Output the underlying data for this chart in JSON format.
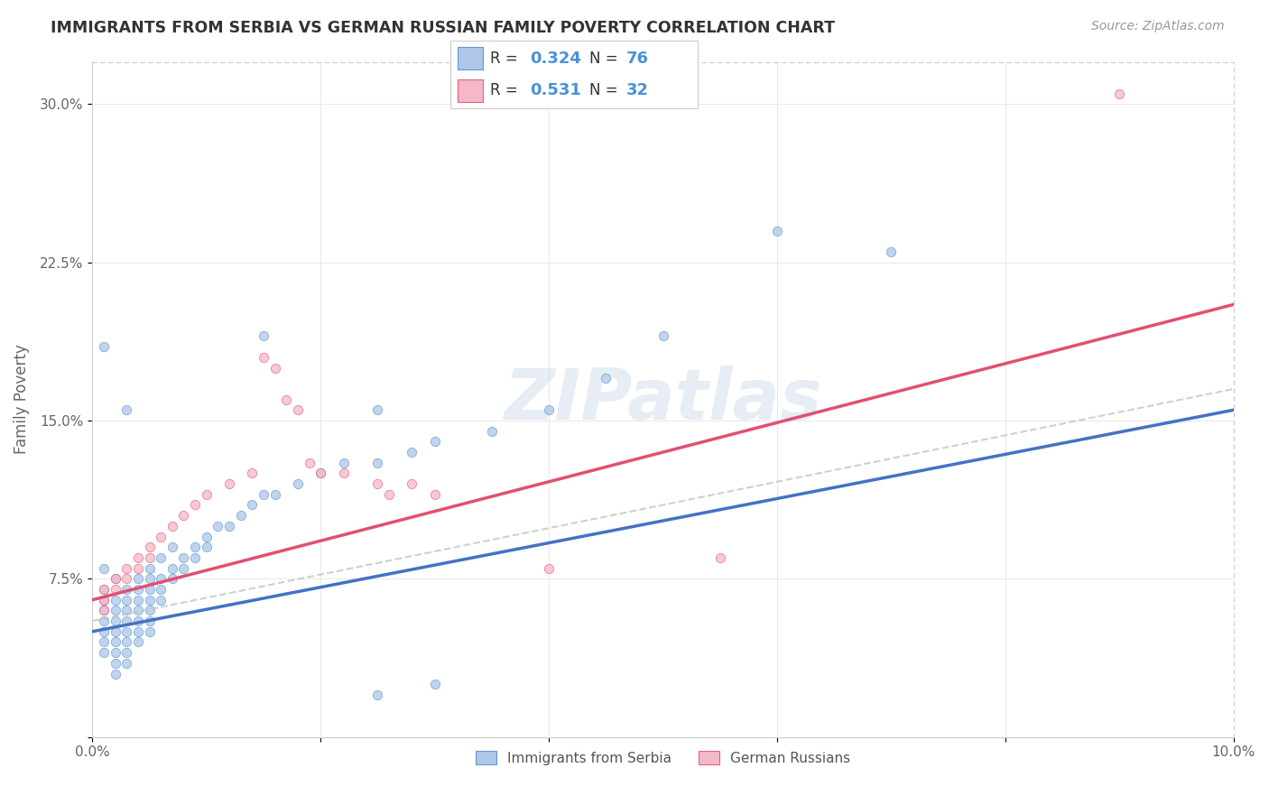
{
  "title": "IMMIGRANTS FROM SERBIA VS GERMAN RUSSIAN FAMILY POVERTY CORRELATION CHART",
  "source": "Source: ZipAtlas.com",
  "ylabel": "Family Poverty",
  "xlim": [
    0.0,
    0.1
  ],
  "ylim": [
    0.0,
    0.32
  ],
  "xtick_positions": [
    0.0,
    0.02,
    0.04,
    0.06,
    0.08,
    0.1
  ],
  "xticklabels": [
    "0.0%",
    "",
    "",
    "",
    "",
    "10.0%"
  ],
  "ytick_positions": [
    0.0,
    0.075,
    0.15,
    0.225,
    0.3
  ],
  "yticklabels": [
    "",
    "7.5%",
    "15.0%",
    "22.5%",
    "30.0%"
  ],
  "serbia_fill_color": "#aec6e8",
  "serbia_edge_color": "#5b9bd5",
  "gr_fill_color": "#f4b8c8",
  "gr_edge_color": "#e8607a",
  "serbia_line_color": "#4472c4",
  "gr_line_color": "#e05070",
  "dash_line_color": "#b8ccb8",
  "legend_color": "#4a90d9",
  "watermark_text": "ZIPatlas",
  "serbia_scatter": [
    [
      0.001,
      0.065
    ],
    [
      0.001,
      0.07
    ],
    [
      0.001,
      0.08
    ],
    [
      0.001,
      0.055
    ],
    [
      0.001,
      0.06
    ],
    [
      0.001,
      0.05
    ],
    [
      0.001,
      0.045
    ],
    [
      0.001,
      0.04
    ],
    [
      0.002,
      0.075
    ],
    [
      0.002,
      0.065
    ],
    [
      0.002,
      0.06
    ],
    [
      0.002,
      0.055
    ],
    [
      0.002,
      0.05
    ],
    [
      0.002,
      0.045
    ],
    [
      0.002,
      0.04
    ],
    [
      0.002,
      0.035
    ],
    [
      0.002,
      0.03
    ],
    [
      0.003,
      0.07
    ],
    [
      0.003,
      0.065
    ],
    [
      0.003,
      0.06
    ],
    [
      0.003,
      0.055
    ],
    [
      0.003,
      0.05
    ],
    [
      0.003,
      0.045
    ],
    [
      0.003,
      0.04
    ],
    [
      0.003,
      0.035
    ],
    [
      0.004,
      0.075
    ],
    [
      0.004,
      0.07
    ],
    [
      0.004,
      0.065
    ],
    [
      0.004,
      0.06
    ],
    [
      0.004,
      0.055
    ],
    [
      0.004,
      0.05
    ],
    [
      0.004,
      0.045
    ],
    [
      0.005,
      0.08
    ],
    [
      0.005,
      0.075
    ],
    [
      0.005,
      0.07
    ],
    [
      0.005,
      0.065
    ],
    [
      0.005,
      0.06
    ],
    [
      0.005,
      0.055
    ],
    [
      0.005,
      0.05
    ],
    [
      0.006,
      0.085
    ],
    [
      0.006,
      0.075
    ],
    [
      0.006,
      0.07
    ],
    [
      0.006,
      0.065
    ],
    [
      0.007,
      0.09
    ],
    [
      0.007,
      0.08
    ],
    [
      0.007,
      0.075
    ],
    [
      0.008,
      0.085
    ],
    [
      0.008,
      0.08
    ],
    [
      0.009,
      0.09
    ],
    [
      0.009,
      0.085
    ],
    [
      0.01,
      0.095
    ],
    [
      0.01,
      0.09
    ],
    [
      0.011,
      0.1
    ],
    [
      0.012,
      0.1
    ],
    [
      0.013,
      0.105
    ],
    [
      0.014,
      0.11
    ],
    [
      0.015,
      0.115
    ],
    [
      0.016,
      0.115
    ],
    [
      0.018,
      0.12
    ],
    [
      0.02,
      0.125
    ],
    [
      0.022,
      0.13
    ],
    [
      0.025,
      0.13
    ],
    [
      0.028,
      0.135
    ],
    [
      0.03,
      0.14
    ],
    [
      0.035,
      0.145
    ],
    [
      0.04,
      0.155
    ],
    [
      0.045,
      0.17
    ],
    [
      0.05,
      0.19
    ],
    [
      0.001,
      0.185
    ],
    [
      0.015,
      0.19
    ],
    [
      0.025,
      0.155
    ],
    [
      0.003,
      0.155
    ],
    [
      0.06,
      0.24
    ],
    [
      0.07,
      0.23
    ],
    [
      0.025,
      0.02
    ],
    [
      0.03,
      0.025
    ]
  ],
  "gr_scatter": [
    [
      0.001,
      0.07
    ],
    [
      0.001,
      0.065
    ],
    [
      0.001,
      0.06
    ],
    [
      0.002,
      0.075
    ],
    [
      0.002,
      0.07
    ],
    [
      0.003,
      0.08
    ],
    [
      0.003,
      0.075
    ],
    [
      0.004,
      0.085
    ],
    [
      0.004,
      0.08
    ],
    [
      0.005,
      0.09
    ],
    [
      0.005,
      0.085
    ],
    [
      0.006,
      0.095
    ],
    [
      0.007,
      0.1
    ],
    [
      0.008,
      0.105
    ],
    [
      0.009,
      0.11
    ],
    [
      0.01,
      0.115
    ],
    [
      0.012,
      0.12
    ],
    [
      0.014,
      0.125
    ],
    [
      0.015,
      0.18
    ],
    [
      0.016,
      0.175
    ],
    [
      0.017,
      0.16
    ],
    [
      0.018,
      0.155
    ],
    [
      0.019,
      0.13
    ],
    [
      0.02,
      0.125
    ],
    [
      0.022,
      0.125
    ],
    [
      0.025,
      0.12
    ],
    [
      0.026,
      0.115
    ],
    [
      0.028,
      0.12
    ],
    [
      0.03,
      0.115
    ],
    [
      0.04,
      0.08
    ],
    [
      0.055,
      0.085
    ],
    [
      0.09,
      0.305
    ]
  ],
  "serbia_trendline": [
    0.0,
    0.1,
    0.05,
    0.155
  ],
  "gr_trendline": [
    0.0,
    0.1,
    0.065,
    0.205
  ],
  "dash_trendline": [
    0.0,
    0.1,
    0.055,
    0.165
  ]
}
